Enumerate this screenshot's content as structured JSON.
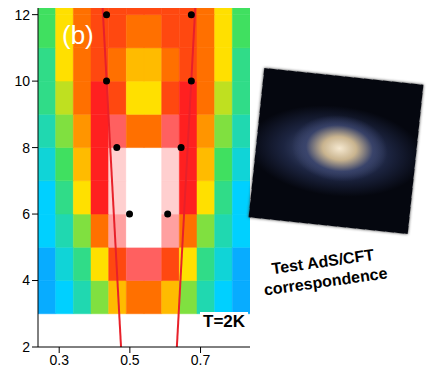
{
  "chart_data": {
    "type": "heatmap",
    "title": "(b)",
    "annotation": "T=2K",
    "caption": "Test AdS/CFT correspondence",
    "xlim": [
      0.24,
      0.84
    ],
    "xticks": [
      0.3,
      0.5,
      0.7
    ],
    "ylim": [
      2,
      12.2
    ],
    "yticks": [
      2,
      4,
      6,
      8,
      10,
      12
    ],
    "x_edges": [
      0.24,
      0.29,
      0.34,
      0.39,
      0.44,
      0.49,
      0.54,
      0.59,
      0.64,
      0.69,
      0.74,
      0.79,
      0.84
    ],
    "y_edges": [
      3,
      4,
      5,
      6,
      7,
      8,
      9,
      10,
      11,
      12,
      12.2
    ],
    "zlim": [
      0,
      1
    ],
    "z": [
      [
        0.15,
        0.2,
        0.3,
        0.45,
        0.6,
        0.7,
        0.7,
        0.6,
        0.45,
        0.3,
        0.2,
        0.15
      ],
      [
        0.15,
        0.25,
        0.35,
        0.55,
        0.75,
        0.85,
        0.85,
        0.75,
        0.55,
        0.35,
        0.25,
        0.15
      ],
      [
        0.2,
        0.3,
        0.45,
        0.7,
        0.9,
        1,
        1,
        0.9,
        0.7,
        0.45,
        0.3,
        0.2
      ],
      [
        0.2,
        0.35,
        0.55,
        0.8,
        0.95,
        1,
        1,
        0.95,
        0.8,
        0.55,
        0.35,
        0.2
      ],
      [
        0.25,
        0.4,
        0.6,
        0.8,
        0.95,
        1,
        1,
        0.95,
        0.8,
        0.6,
        0.4,
        0.25
      ],
      [
        0.3,
        0.45,
        0.65,
        0.8,
        0.85,
        0.7,
        0.7,
        0.85,
        0.8,
        0.65,
        0.45,
        0.3
      ],
      [
        0.35,
        0.5,
        0.7,
        0.8,
        0.75,
        0.55,
        0.55,
        0.75,
        0.8,
        0.7,
        0.5,
        0.35
      ],
      [
        0.35,
        0.55,
        0.7,
        0.75,
        0.7,
        0.6,
        0.6,
        0.7,
        0.75,
        0.7,
        0.55,
        0.35
      ],
      [
        0.4,
        0.55,
        0.7,
        0.75,
        0.75,
        0.7,
        0.7,
        0.75,
        0.75,
        0.7,
        0.55,
        0.4
      ],
      [
        0.4,
        0.55,
        0.7,
        0.75,
        0.75,
        0.75,
        0.75,
        0.75,
        0.75,
        0.7,
        0.55,
        0.4
      ]
    ],
    "series": [
      {
        "type": "scatter",
        "color": "#000000",
        "x": [
          0.434,
          0.674,
          0.434,
          0.674,
          0.463,
          0.645,
          0.499,
          0.607
        ],
        "y": [
          12,
          12,
          10,
          10,
          8,
          8,
          6,
          6
        ]
      },
      {
        "type": "line",
        "color": "#e8202a",
        "x": [
          0.475,
          0.423
        ],
        "y": [
          2,
          12.2
        ]
      },
      {
        "type": "line",
        "color": "#e8202a",
        "x": [
          0.633,
          0.685
        ],
        "y": [
          2,
          12.2
        ]
      }
    ]
  }
}
